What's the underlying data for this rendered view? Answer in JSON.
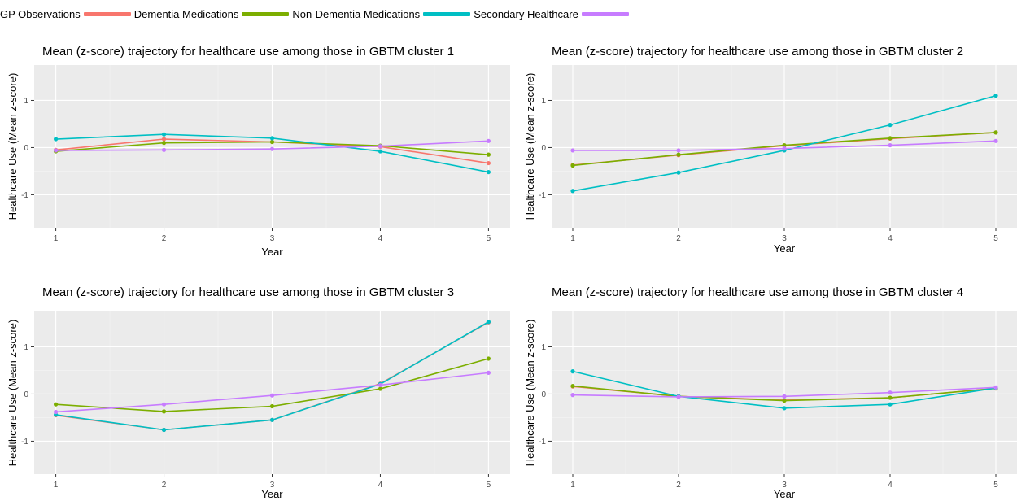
{
  "legend": {
    "items": [
      {
        "label": "GP Observations",
        "color": "#f8766d"
      },
      {
        "label": "Dementia Medications",
        "color": "#7cae00"
      },
      {
        "label": "Non-Dementia Medications",
        "color": "#00bfc4"
      },
      {
        "label": "Secondary Healthcare",
        "color": "#c77cff"
      }
    ]
  },
  "chart_data": [
    {
      "type": "line",
      "title": "Mean (z-score) trajectory for healthcare use among those in GBTM cluster 1",
      "xlabel": "Year",
      "ylabel": "Healthcare Use (Mean z-score)",
      "x": [
        1,
        2,
        3,
        4,
        5
      ],
      "xlim": [
        0.8,
        5.2
      ],
      "ylim": [
        -1.7,
        1.75
      ],
      "yticks": [
        -1,
        0,
        1
      ],
      "grid": true,
      "series": [
        {
          "name": "GP Observations",
          "color": "#f8766d",
          "values": [
            -0.05,
            0.18,
            0.12,
            0.02,
            -0.33
          ]
        },
        {
          "name": "Dementia Medications",
          "color": "#7cae00",
          "values": [
            -0.08,
            0.1,
            0.12,
            0.04,
            -0.15
          ]
        },
        {
          "name": "Non-Dementia Medications",
          "color": "#00bfc4",
          "values": [
            0.18,
            0.28,
            0.2,
            -0.08,
            -0.52
          ]
        },
        {
          "name": "Secondary Healthcare",
          "color": "#c77cff",
          "values": [
            -0.06,
            -0.05,
            -0.03,
            0.03,
            0.14
          ]
        }
      ]
    },
    {
      "type": "line",
      "title": "Mean (z-score) trajectory for healthcare use among those in GBTM cluster 2",
      "xlabel": "Year",
      "ylabel": "Healthcare Use (Mean z-score)",
      "x": [
        1,
        2,
        3,
        4,
        5
      ],
      "xlim": [
        0.8,
        5.2
      ],
      "ylim": [
        -1.7,
        1.75
      ],
      "yticks": [
        -1,
        0,
        1
      ],
      "grid": true,
      "series": [
        {
          "name": "GP Observations",
          "color": "#f8766d",
          "values": [
            -0.37,
            -0.16,
            0.04,
            0.19,
            0.32
          ]
        },
        {
          "name": "Dementia Medications",
          "color": "#7cae00",
          "values": [
            -0.38,
            -0.15,
            0.05,
            0.2,
            0.32
          ]
        },
        {
          "name": "Non-Dementia Medications",
          "color": "#00bfc4",
          "values": [
            -0.92,
            -0.53,
            -0.06,
            0.48,
            1.1
          ]
        },
        {
          "name": "Secondary Healthcare",
          "color": "#c77cff",
          "values": [
            -0.06,
            -0.06,
            -0.02,
            0.05,
            0.14
          ]
        }
      ]
    },
    {
      "type": "line",
      "title": "Mean (z-score) trajectory for healthcare use among those in GBTM cluster 3",
      "xlabel": "Year",
      "ylabel": "Healthcare Use (Mean z-score)",
      "x": [
        1,
        2,
        3,
        4,
        5
      ],
      "xlim": [
        0.8,
        5.2
      ],
      "ylim": [
        -1.7,
        1.75
      ],
      "yticks": [
        -1,
        0,
        1
      ],
      "grid": true,
      "series": [
        {
          "name": "GP Observations",
          "color": "#f8766d",
          "values": [
            -0.45,
            -0.76,
            -0.55,
            0.22,
            1.52
          ]
        },
        {
          "name": "Dementia Medications",
          "color": "#7cae00",
          "values": [
            -0.22,
            -0.37,
            -0.26,
            0.11,
            0.75
          ]
        },
        {
          "name": "Non-Dementia Medications",
          "color": "#00bfc4",
          "values": [
            -0.44,
            -0.76,
            -0.55,
            0.21,
            1.53
          ]
        },
        {
          "name": "Secondary Healthcare",
          "color": "#c77cff",
          "values": [
            -0.38,
            -0.22,
            -0.03,
            0.19,
            0.45
          ]
        }
      ]
    },
    {
      "type": "line",
      "title": "Mean (z-score) trajectory for healthcare use among those in GBTM cluster 4",
      "xlabel": "Year",
      "ylabel": "Healthcare Use (Mean z-score)",
      "x": [
        1,
        2,
        3,
        4,
        5
      ],
      "xlim": [
        0.8,
        5.2
      ],
      "ylim": [
        -1.7,
        1.75
      ],
      "yticks": [
        -1,
        0,
        1
      ],
      "grid": true,
      "series": [
        {
          "name": "GP Observations",
          "color": "#f8766d",
          "values": [
            0.16,
            -0.05,
            -0.13,
            -0.08,
            0.12
          ]
        },
        {
          "name": "Dementia Medications",
          "color": "#7cae00",
          "values": [
            0.17,
            -0.05,
            -0.14,
            -0.08,
            0.12
          ]
        },
        {
          "name": "Non-Dementia Medications",
          "color": "#00bfc4",
          "values": [
            0.48,
            -0.05,
            -0.3,
            -0.22,
            0.13
          ]
        },
        {
          "name": "Secondary Healthcare",
          "color": "#c77cff",
          "values": [
            -0.02,
            -0.06,
            -0.05,
            0.03,
            0.14
          ]
        }
      ]
    }
  ]
}
